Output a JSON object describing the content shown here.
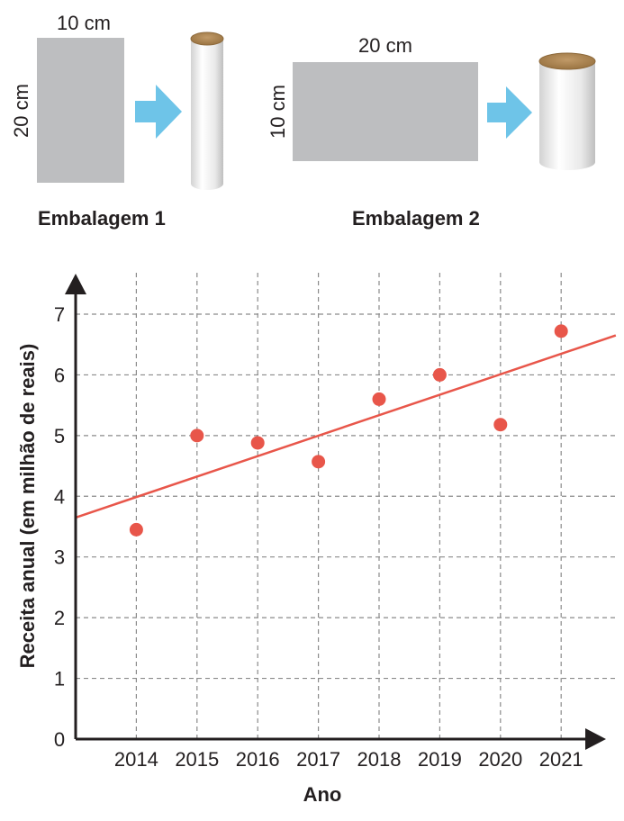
{
  "packages": {
    "pkg1": {
      "width_label": "10 cm",
      "height_label": "20 cm",
      "name": "Embalagem 1"
    },
    "pkg2": {
      "width_label": "20 cm",
      "height_label": "10 cm",
      "name": "Embalagem 2"
    },
    "colors": {
      "sheet": "#bdbec0",
      "arrow": "#6ec4e8",
      "cylinder_top": "#a7804f",
      "cylinder_body": "#e6e6e6"
    },
    "icons": {
      "arrow": "right-arrow-icon",
      "cylinder": "cylinder-icon"
    }
  },
  "chart_data": {
    "type": "scatter",
    "title": "",
    "xlabel": "Ano",
    "ylabel": "Receita anual (em milhão de reais)",
    "x": [
      2014,
      2015,
      2016,
      2017,
      2018,
      2019,
      2020,
      2021
    ],
    "x_tick_labels": [
      "2014",
      "2015",
      "2016",
      "2017",
      "2018",
      "2019",
      "2020",
      "2021"
    ],
    "y": [
      3.45,
      5.0,
      4.88,
      4.57,
      5.6,
      6.0,
      5.18,
      6.72
    ],
    "y_ticks": [
      0,
      1,
      2,
      3,
      4,
      5,
      6,
      7
    ],
    "y_tick_labels": [
      "0",
      "1",
      "2",
      "3",
      "4",
      "5",
      "6",
      "7"
    ],
    "xlim": [
      2013,
      2021.9
    ],
    "ylim": [
      0,
      7.7
    ],
    "trendline": {
      "x": [
        2013,
        2021.9
      ],
      "y": [
        3.65,
        6.65
      ]
    },
    "grid": true,
    "colors": {
      "point": "#e8564a",
      "trendline": "#e8564a",
      "grid": "#8a8a8a",
      "axis": "#231f20"
    }
  }
}
